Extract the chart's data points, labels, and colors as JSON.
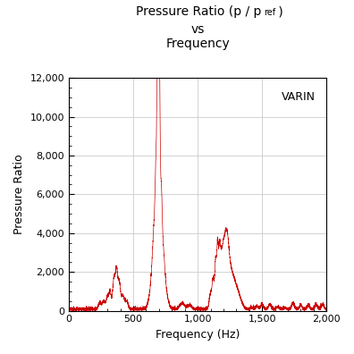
{
  "title_line1": "Pressure Ratio (p / p",
  "title_ref": "ref",
  "title_line2": "vs",
  "title_line3": "Frequency",
  "xlabel": "Frequency (Hz)",
  "ylabel": "Pressure Ratio",
  "annotation": "VARIN",
  "xlim": [
    0,
    2000
  ],
  "ylim": [
    0,
    12000
  ],
  "yticks": [
    0,
    2000,
    4000,
    6000,
    8000,
    10000,
    12000
  ],
  "xticks": [
    0,
    500,
    1000,
    1500,
    2000
  ],
  "line_color": "#cc0000",
  "background_color": "#ffffff",
  "grid_color": "#cccccc"
}
